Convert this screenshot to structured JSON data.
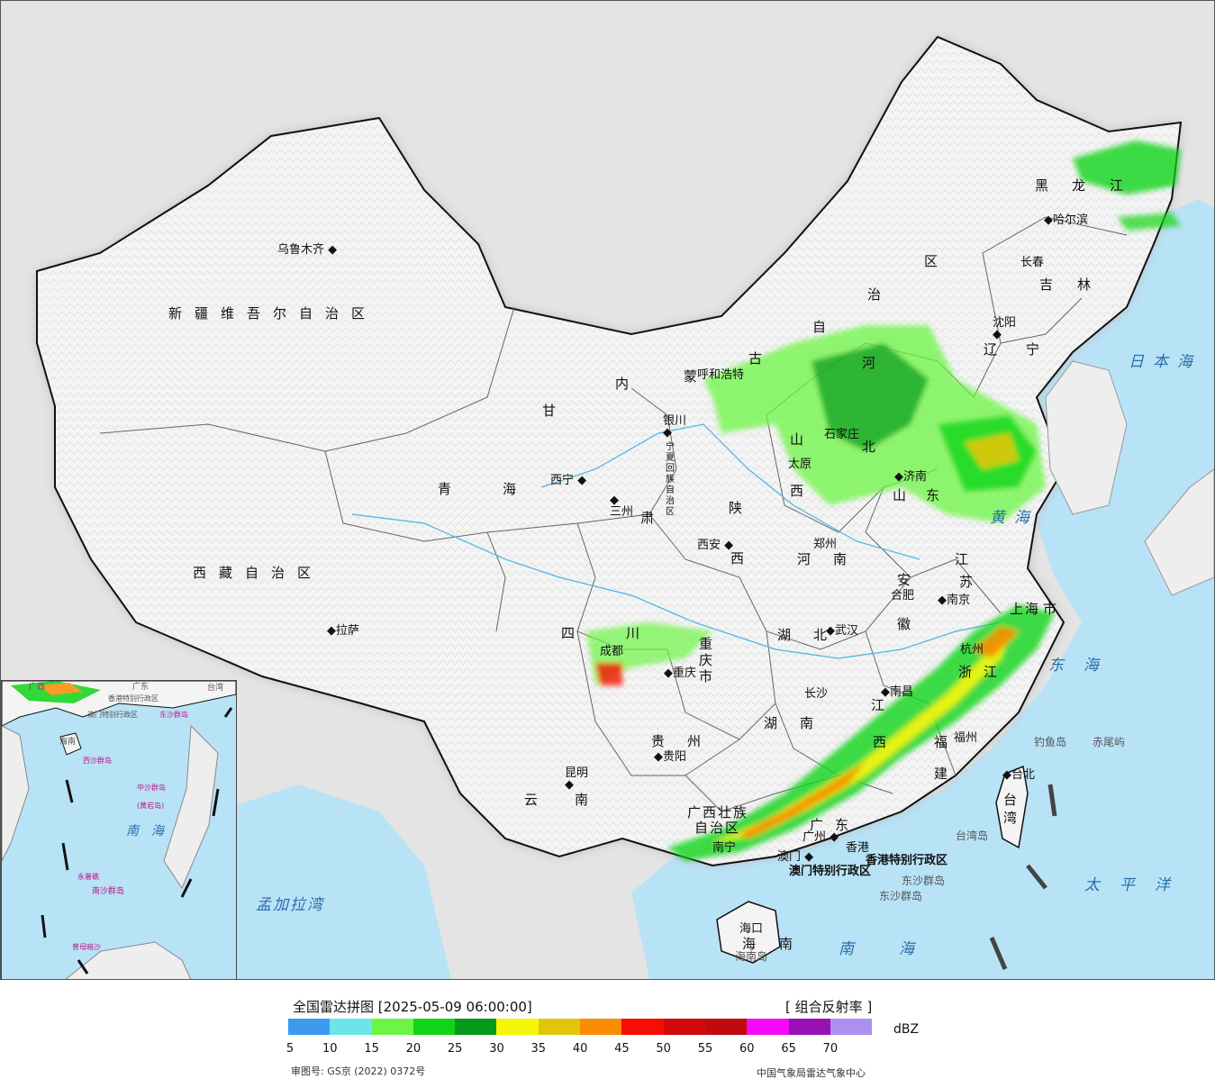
{
  "map": {
    "provinces": [
      {
        "id": "xinjiang",
        "label": "新疆维吾尔自治区"
      },
      {
        "id": "xizang",
        "label": "西藏自治区"
      },
      {
        "id": "qinghai-1",
        "label": "青"
      },
      {
        "id": "qinghai-2",
        "label": "海"
      },
      {
        "id": "gansu",
        "label": "甘"
      },
      {
        "id": "sichuan-1",
        "label": "四"
      },
      {
        "id": "sichuan-2",
        "label": "川"
      },
      {
        "id": "yunnan-1",
        "label": "云"
      },
      {
        "id": "yunnan-2",
        "label": "南"
      },
      {
        "id": "guizhou-1",
        "label": "贵"
      },
      {
        "id": "guizhou-2",
        "label": "州"
      },
      {
        "id": "chongqing-1",
        "label": "重"
      },
      {
        "id": "chongqing-2",
        "label": "庆"
      },
      {
        "id": "chongqing-3",
        "label": "市"
      },
      {
        "id": "guangxi-1",
        "label": "广西壮族"
      },
      {
        "id": "guangxi-2",
        "label": "自治区"
      },
      {
        "id": "guangdong-1",
        "label": "广"
      },
      {
        "id": "guangdong-2",
        "label": "东"
      },
      {
        "id": "hainan-1",
        "label": "海"
      },
      {
        "id": "hainan-2",
        "label": "南"
      },
      {
        "id": "hunan-1",
        "label": "湖"
      },
      {
        "id": "hunan-2",
        "label": "南"
      },
      {
        "id": "hubei-1",
        "label": "湖"
      },
      {
        "id": "hubei-2",
        "label": "北"
      },
      {
        "id": "jiangxi-1",
        "label": "江"
      },
      {
        "id": "jiangxi-2",
        "label": "西"
      },
      {
        "id": "fujian-1",
        "label": "福"
      },
      {
        "id": "fujian-2",
        "label": "建"
      },
      {
        "id": "zhejiang-1",
        "label": "浙"
      },
      {
        "id": "zhejiang-2",
        "label": "江"
      },
      {
        "id": "anhui-1",
        "label": "安"
      },
      {
        "id": "anhui-2",
        "label": "徽"
      },
      {
        "id": "jiangsu-1",
        "label": "江"
      },
      {
        "id": "jiangsu-2",
        "label": "苏"
      },
      {
        "id": "shanghai-1",
        "label": "上"
      },
      {
        "id": "shanghai-2",
        "label": "海"
      },
      {
        "id": "shanghai-3",
        "label": "市"
      },
      {
        "id": "henan-1",
        "label": "河"
      },
      {
        "id": "henan-2",
        "label": "南"
      },
      {
        "id": "shaanxi-1",
        "label": "陕"
      },
      {
        "id": "shaanxi-2",
        "label": "西"
      },
      {
        "id": "shanxi-1",
        "label": "山"
      },
      {
        "id": "shanxi-2",
        "label": "西"
      },
      {
        "id": "shandong-1",
        "label": "山"
      },
      {
        "id": "shandong-2",
        "label": "东"
      },
      {
        "id": "hebei-1",
        "label": "河"
      },
      {
        "id": "hebei-2",
        "label": "北"
      },
      {
        "id": "liaoning-1",
        "label": "辽"
      },
      {
        "id": "liaoning-2",
        "label": "宁"
      },
      {
        "id": "jilin-1",
        "label": "吉"
      },
      {
        "id": "jilin-2",
        "label": "林"
      },
      {
        "id": "heilongjiang-1",
        "label": "黑"
      },
      {
        "id": "heilongjiang-2",
        "label": "龙"
      },
      {
        "id": "heilongjiang-3",
        "label": "江"
      },
      {
        "id": "neimenggu-1",
        "label": "内"
      },
      {
        "id": "neimenggu-2",
        "label": "蒙"
      },
      {
        "id": "neimenggu-3",
        "label": "古"
      },
      {
        "id": "neimenggu-4",
        "label": "自"
      },
      {
        "id": "neimenggu-5",
        "label": "治"
      },
      {
        "id": "neimenggu-6",
        "label": "区"
      },
      {
        "id": "ningxia",
        "label": "宁夏回族自治区"
      },
      {
        "id": "gansu-2",
        "label": "肃"
      },
      {
        "id": "taiwan-1",
        "label": "台"
      },
      {
        "id": "taiwan-2",
        "label": "湾"
      },
      {
        "id": "hk",
        "label": "香港特别行政区"
      },
      {
        "id": "macau",
        "label": "澳门特别行政区"
      }
    ],
    "cities": [
      {
        "id": "urumqi",
        "label": "乌鲁木齐"
      },
      {
        "id": "lhasa",
        "label": "拉萨"
      },
      {
        "id": "xining",
        "label": "西宁"
      },
      {
        "id": "lanzhou",
        "label": "三州"
      },
      {
        "id": "yinchuan",
        "label": "银川"
      },
      {
        "id": "hohhot",
        "label": "呼和浩特"
      },
      {
        "id": "xian",
        "label": "西安"
      },
      {
        "id": "chengdu",
        "label": "成都"
      },
      {
        "id": "chongqing",
        "label": "重庆"
      },
      {
        "id": "guiyang",
        "label": "贵阳"
      },
      {
        "id": "kunming",
        "label": "昆明"
      },
      {
        "id": "nanning",
        "label": "南宁"
      },
      {
        "id": "guangzhou",
        "label": "广州"
      },
      {
        "id": "macau-city",
        "label": "澳门"
      },
      {
        "id": "hongkong",
        "label": "香港"
      },
      {
        "id": "haikou",
        "label": "海口"
      },
      {
        "id": "changsha",
        "label": "长沙"
      },
      {
        "id": "wuhan",
        "label": "武汉"
      },
      {
        "id": "nanchang",
        "label": "南昌"
      },
      {
        "id": "fuzhou",
        "label": "福州"
      },
      {
        "id": "taibei",
        "label": "台北"
      },
      {
        "id": "hangzhou",
        "label": "杭州"
      },
      {
        "id": "hefei",
        "label": "合肥"
      },
      {
        "id": "nanjing",
        "label": "南京"
      },
      {
        "id": "zhengzhou",
        "label": "郑州"
      },
      {
        "id": "taiyuan",
        "label": "太原"
      },
      {
        "id": "shijiazhuang",
        "label": "石家庄"
      },
      {
        "id": "jinan",
        "label": "济南"
      },
      {
        "id": "shenyang",
        "label": "沈阳"
      },
      {
        "id": "changchun",
        "label": "长春"
      },
      {
        "id": "harbin",
        "label": "哈尔滨"
      }
    ],
    "seas": [
      {
        "id": "japan-sea",
        "label": "日本海"
      },
      {
        "id": "yellow-sea",
        "label": "黄海"
      },
      {
        "id": "east-sea",
        "label": "东海"
      },
      {
        "id": "pacific",
        "label": "太平洋"
      },
      {
        "id": "south-sea",
        "label": "南海"
      },
      {
        "id": "bengal",
        "label": "孟加拉湾"
      }
    ],
    "islands": [
      {
        "id": "diaoyu",
        "label": "钓鱼岛"
      },
      {
        "id": "chiwei",
        "label": "赤尾屿"
      },
      {
        "id": "taiwan-island",
        "label": "台湾岛"
      },
      {
        "id": "dongsha",
        "label": "东沙群岛"
      },
      {
        "id": "hainan-island",
        "label": "海南岛"
      }
    ],
    "inset": {
      "labels": [
        {
          "id": "in-guangdong",
          "label": "广东"
        },
        {
          "id": "in-guangxi",
          "label": "广西"
        },
        {
          "id": "in-taiwan",
          "label": "台湾"
        },
        {
          "id": "in-hk",
          "label": "香港特别行政区"
        },
        {
          "id": "in-macau",
          "label": "澳门特别行政区"
        },
        {
          "id": "in-dongsha",
          "label": "东沙群岛"
        },
        {
          "id": "in-hainan",
          "label": "海南"
        },
        {
          "id": "in-xisha",
          "label": "西沙群岛"
        },
        {
          "id": "in-zhongsha",
          "label": "中沙群岛"
        },
        {
          "id": "in-huangyan",
          "label": "(黄岩岛)"
        },
        {
          "id": "in-nansha",
          "label": "南沙群岛"
        },
        {
          "id": "in-southsea",
          "label": "南海"
        },
        {
          "id": "in-yongshu",
          "label": "永暑礁"
        },
        {
          "id": "in-zengmu",
          "label": "曾母暗沙"
        }
      ]
    }
  },
  "legend": {
    "title": "全国雷达拼图 [2025-05-09 06:00:00]",
    "product": "[ 组合反射率 ]",
    "unit": "dBZ",
    "colors": [
      "#3d9aef",
      "#6ae6ea",
      "#6cf544",
      "#0fd516",
      "#06991b",
      "#f6f608",
      "#e2c606",
      "#fa8c03",
      "#f90c04",
      "#d2090b",
      "#c00a0e",
      "#f708f8",
      "#9910b4",
      "#ad8ff1"
    ],
    "ticks": [
      "5",
      "10",
      "15",
      "20",
      "25",
      "30",
      "35",
      "40",
      "45",
      "50",
      "55",
      "60",
      "65",
      "70"
    ],
    "approval": "审图号: GS京 (2022) 0372号",
    "source": "中国气象局雷达气象中心"
  }
}
